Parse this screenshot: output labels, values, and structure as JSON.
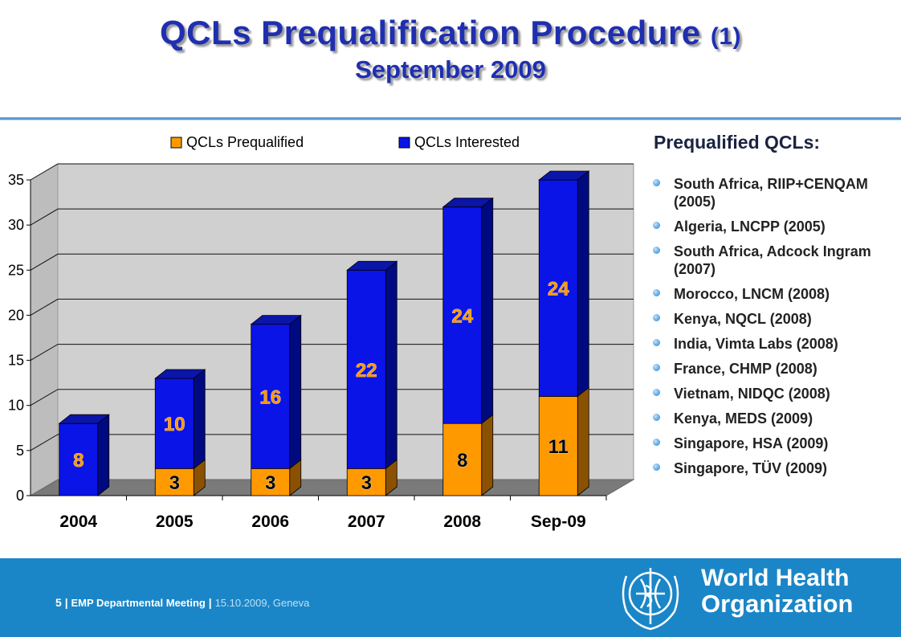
{
  "title": {
    "main": "QCLs Prequalification Procedure",
    "paren": "(1)",
    "sub": "September 2009"
  },
  "chart_data": {
    "type": "bar",
    "stacked": true,
    "categories": [
      "2004",
      "2005",
      "2006",
      "2007",
      "2008",
      "Sep-09"
    ],
    "series": [
      {
        "name": "QCLs Prequalified",
        "values": [
          0,
          3,
          3,
          3,
          8,
          11
        ],
        "labels": [
          "",
          "3",
          "3",
          "3",
          "8",
          "11"
        ],
        "color": "#ff9900"
      },
      {
        "name": "QCLs Interested",
        "values": [
          8,
          10,
          16,
          22,
          24,
          24
        ],
        "labels": [
          "8",
          "10",
          "16",
          "22",
          "24",
          "24"
        ],
        "color": "#0a14e6"
      }
    ],
    "yticks": [
      "0",
      "5",
      "10",
      "15",
      "20",
      "25",
      "30",
      "35"
    ],
    "ylim": [
      0,
      35
    ],
    "grid": true,
    "legend": "top"
  },
  "sidebar": {
    "title": "Prequalified QCLs:",
    "items": [
      "South Africa, RIIP+CENQAM (2005)",
      "Algeria, LNCPP (2005)",
      "South Africa, Adcock Ingram (2007)",
      "Morocco, LNCM (2008)",
      "Kenya, NQCL (2008)",
      "India, Vimta Labs (2008)",
      "France, CHMP (2008)",
      "Vietnam, NIDQC (2008)",
      "Kenya, MEDS (2009)",
      "Singapore, HSA (2009)",
      "Singapore, TÜV (2009)"
    ]
  },
  "footer": {
    "page": "5",
    "meeting": "EMP Departmental Meeting",
    "date": "15.10.2009, Geneva",
    "org_line1": "World Health",
    "org_line2": "Organization"
  },
  "colors": {
    "accent": "#1b86c7",
    "title": "#1f2fb0",
    "interested": "#0a14e6",
    "prequalified": "#ff9900"
  }
}
